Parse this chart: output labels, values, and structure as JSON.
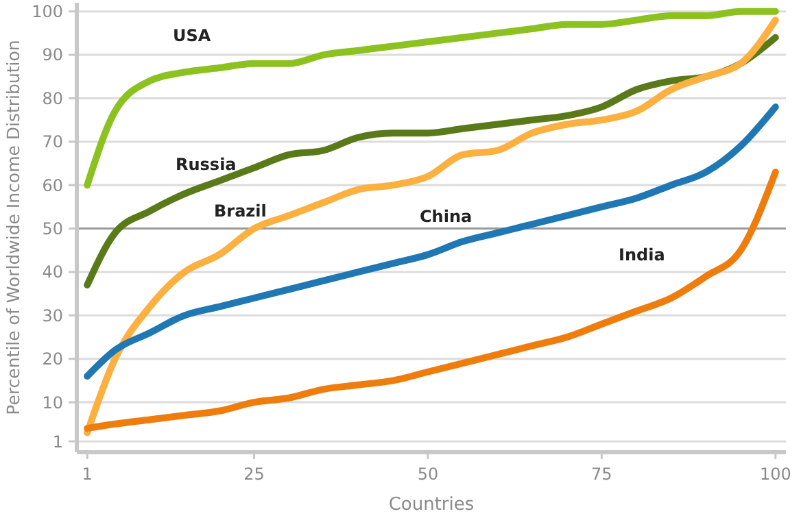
{
  "chart_data": {
    "type": "line",
    "xlabel": "Countries",
    "ylabel": "Percentile of Worldwide Income Distribution",
    "x": [
      1,
      5,
      10,
      15,
      20,
      25,
      30,
      35,
      40,
      45,
      50,
      55,
      60,
      65,
      70,
      75,
      80,
      85,
      90,
      95,
      100
    ],
    "series": [
      {
        "name": "USA",
        "color": "#8cc21f",
        "values": [
          60,
          77,
          84,
          86,
          87,
          88,
          88,
          90,
          91,
          92,
          93,
          94,
          95,
          96,
          97,
          97,
          98,
          99,
          99,
          100,
          100
        ]
      },
      {
        "name": "Russia",
        "color": "#5a7a1a",
        "values": [
          37,
          49,
          54,
          58,
          61,
          64,
          67,
          68,
          71,
          72,
          72,
          73,
          74,
          75,
          76,
          78,
          82,
          84,
          85,
          88,
          94
        ]
      },
      {
        "name": "Brazil",
        "color": "#fbb040",
        "values": [
          3,
          20,
          32,
          40,
          44,
          50,
          53,
          56,
          59,
          60,
          62,
          67,
          68,
          72,
          74,
          75,
          77,
          82,
          85,
          88,
          98
        ]
      },
      {
        "name": "China",
        "color": "#1f78b4",
        "values": [
          16,
          22,
          26,
          30,
          32,
          34,
          36,
          38,
          40,
          42,
          44,
          47,
          49,
          51,
          53,
          55,
          57,
          60,
          63,
          69,
          78
        ]
      },
      {
        "name": "India",
        "color": "#ef7d0d",
        "values": [
          4,
          5,
          6,
          7,
          8,
          10,
          11,
          13,
          14,
          15,
          17,
          19,
          21,
          23,
          25,
          28,
          31,
          34,
          39,
          45,
          63
        ]
      }
    ],
    "xlim": [
      -0.5,
      101.5
    ],
    "ylim": [
      -1.5,
      102
    ],
    "xticks": [
      1,
      25,
      50,
      75,
      100
    ],
    "yticks": [
      1,
      10,
      20,
      30,
      40,
      50,
      60,
      70,
      80,
      90,
      100
    ],
    "grid": "y",
    "ref_lines": [
      {
        "axis": "y",
        "value": 50,
        "color": "#9a9a9a"
      }
    ],
    "marker": "none",
    "line_style": "solid"
  }
}
